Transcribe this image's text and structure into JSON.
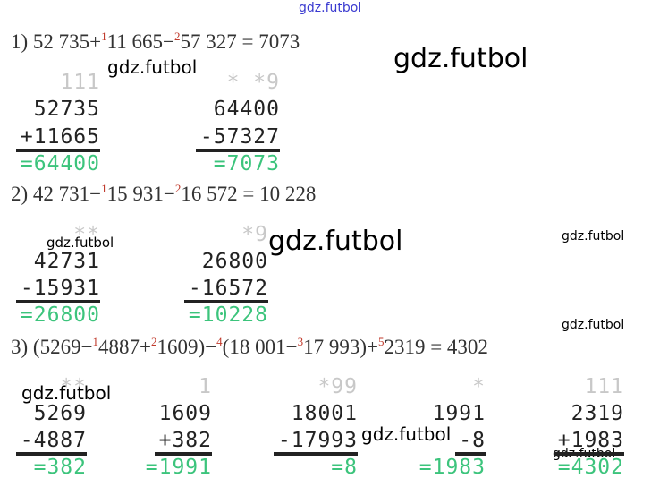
{
  "watermarks": [
    "gdz.futbol",
    "gdz.futbol",
    "gdz.futbol",
    "gdz.futbol",
    "gdz.futbol",
    "gdz.futbol",
    "gdz.futbol",
    "gdz.futbol",
    "gdz.futbol",
    "gdz.futbol"
  ],
  "problems": [
    {
      "expression": [
        {
          "text": "1) 52 735+"
        },
        {
          "order": "1"
        },
        {
          "text": "11 665−"
        },
        {
          "order": "2"
        },
        {
          "text": "57 327 = 7073"
        }
      ],
      "columns": [
        {
          "carry": "111",
          "top": "52735",
          "bottom": "+11665",
          "result": "=64400"
        },
        {
          "carry": "* *9",
          "top": "64400",
          "bottom": "-57327",
          "result": "=7073"
        }
      ]
    },
    {
      "expression": [
        {
          "text": "2) 42 731−"
        },
        {
          "order": "1"
        },
        {
          "text": "15 931−"
        },
        {
          "order": "2"
        },
        {
          "text": "16 572 = 10 228"
        }
      ],
      "columns": [
        {
          "carry": "**",
          "top": "42731",
          "bottom": "-15931",
          "result": "=26800"
        },
        {
          "carry": "*9",
          "top": "26800",
          "bottom": "-16572",
          "result": "=10228"
        }
      ]
    },
    {
      "expression": [
        {
          "text": "3) (5269−"
        },
        {
          "order": "1"
        },
        {
          "text": "4887+"
        },
        {
          "order": "2"
        },
        {
          "text": "1609)−"
        },
        {
          "order": "4"
        },
        {
          "text": "(18 001−"
        },
        {
          "order": "3"
        },
        {
          "text": "17 993)+"
        },
        {
          "order": "5"
        },
        {
          "text": "2319 = 4302"
        }
      ],
      "columns": [
        {
          "carry": "**",
          "top": "5269",
          "bottom": "-4887",
          "result": "=382"
        },
        {
          "carry": "1",
          "top": "1609",
          "bottom": "+382",
          "result": "=1991"
        },
        {
          "carry": "*99",
          "top": "18001",
          "bottom": "-17993",
          "result": "=8"
        },
        {
          "carry": "*",
          "top": "1991",
          "bottom": "-8",
          "result": "=1983"
        },
        {
          "carry": "111",
          "top": "2319",
          "bottom": "+1983",
          "result": "=4302"
        }
      ]
    }
  ]
}
